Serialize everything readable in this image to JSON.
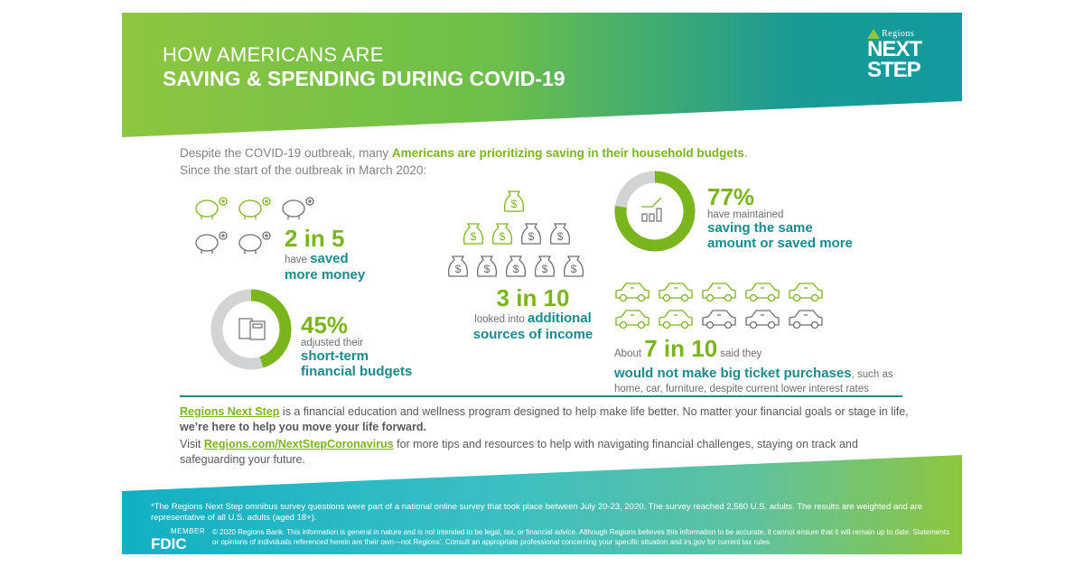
{
  "header": {
    "title_line1": "HOW AMERICANS ARE",
    "title_line2": "SAVING & SPENDING DURING COVID-19"
  },
  "logo": {
    "brand": "Regions",
    "line1": "NEXT",
    "line2": "STEP"
  },
  "intro": {
    "part1": "Despite the COVID-19 outbreak, many ",
    "highlight": "Americans are prioritizing saving in their household budgets",
    "part2": ".",
    "line2": "Since the start of the outbreak in March 2020:"
  },
  "stats": {
    "saved_more": {
      "value": "2 in 5",
      "pre": "have ",
      "bold1": "saved",
      "bold2": "more money",
      "fraction": 0.4,
      "icon": "piggy-bank-icon"
    },
    "budgets": {
      "value": "45%",
      "pre": "adjusted their",
      "bold1": "short-term",
      "bold2": "financial budgets",
      "percent": 45,
      "icon": "budget-calculator-icon"
    },
    "income": {
      "value": "3 in 10",
      "pre": "looked into ",
      "bold1": "additional",
      "bold2": "sources of income",
      "fraction": 0.3,
      "icon": "money-bag-icon"
    },
    "maintained": {
      "value": "77%",
      "pre": "have maintained",
      "bold1": "saving the same",
      "bold2": "amount or saved more",
      "percent": 77,
      "icon": "growth-chart-icon"
    },
    "purchases": {
      "pre": "About ",
      "value": "7 in 10",
      "mid": " said they",
      "bold": "would not make big ticket purchases",
      "post": ", such as",
      "line3": "home, car, furniture, despite current lower interest rates",
      "fraction": 0.7,
      "icon": "car-icon"
    }
  },
  "program": {
    "link": "Regions Next Step",
    "text1": " is a financial education and wellness program designed to help make life better. No matter your financial goals or stage in life, ",
    "bold": "we’re here to help you move your life forward."
  },
  "visit": {
    "pre": "Visit ",
    "link": "Regions.com/NextStepCoronavirus",
    "post": " for more tips and resources to help with navigating financial challenges, staying on track and safeguarding your future."
  },
  "footer": {
    "footnote": "*The Regions Next Step omnibus survey questions were part of a national online survey that took place between July 20-23, 2020. The survey reached 2,580 U.S. adults. The results are weighted and are representative of all U.S. adults (aged 18+).",
    "fdic_member": "MEMBER",
    "fdic": "FDIC",
    "legal": "© 2020 Regions Bank. This information is general in nature and is not intended to be legal, tax, or financial advice. Although Regions believes this information to be accurate, it cannot ensure that it will remain up to date. Statements or opinions of individuals referenced herein are their own—not Regions’. Consult an appropriate professional concerning your specific situation and irs.gov for current tax rules."
  },
  "colors": {
    "green": "#7ab51d",
    "teal": "#1a8a8f",
    "gray": "#d1d3d4",
    "icon_gray": "#6d6e71"
  }
}
